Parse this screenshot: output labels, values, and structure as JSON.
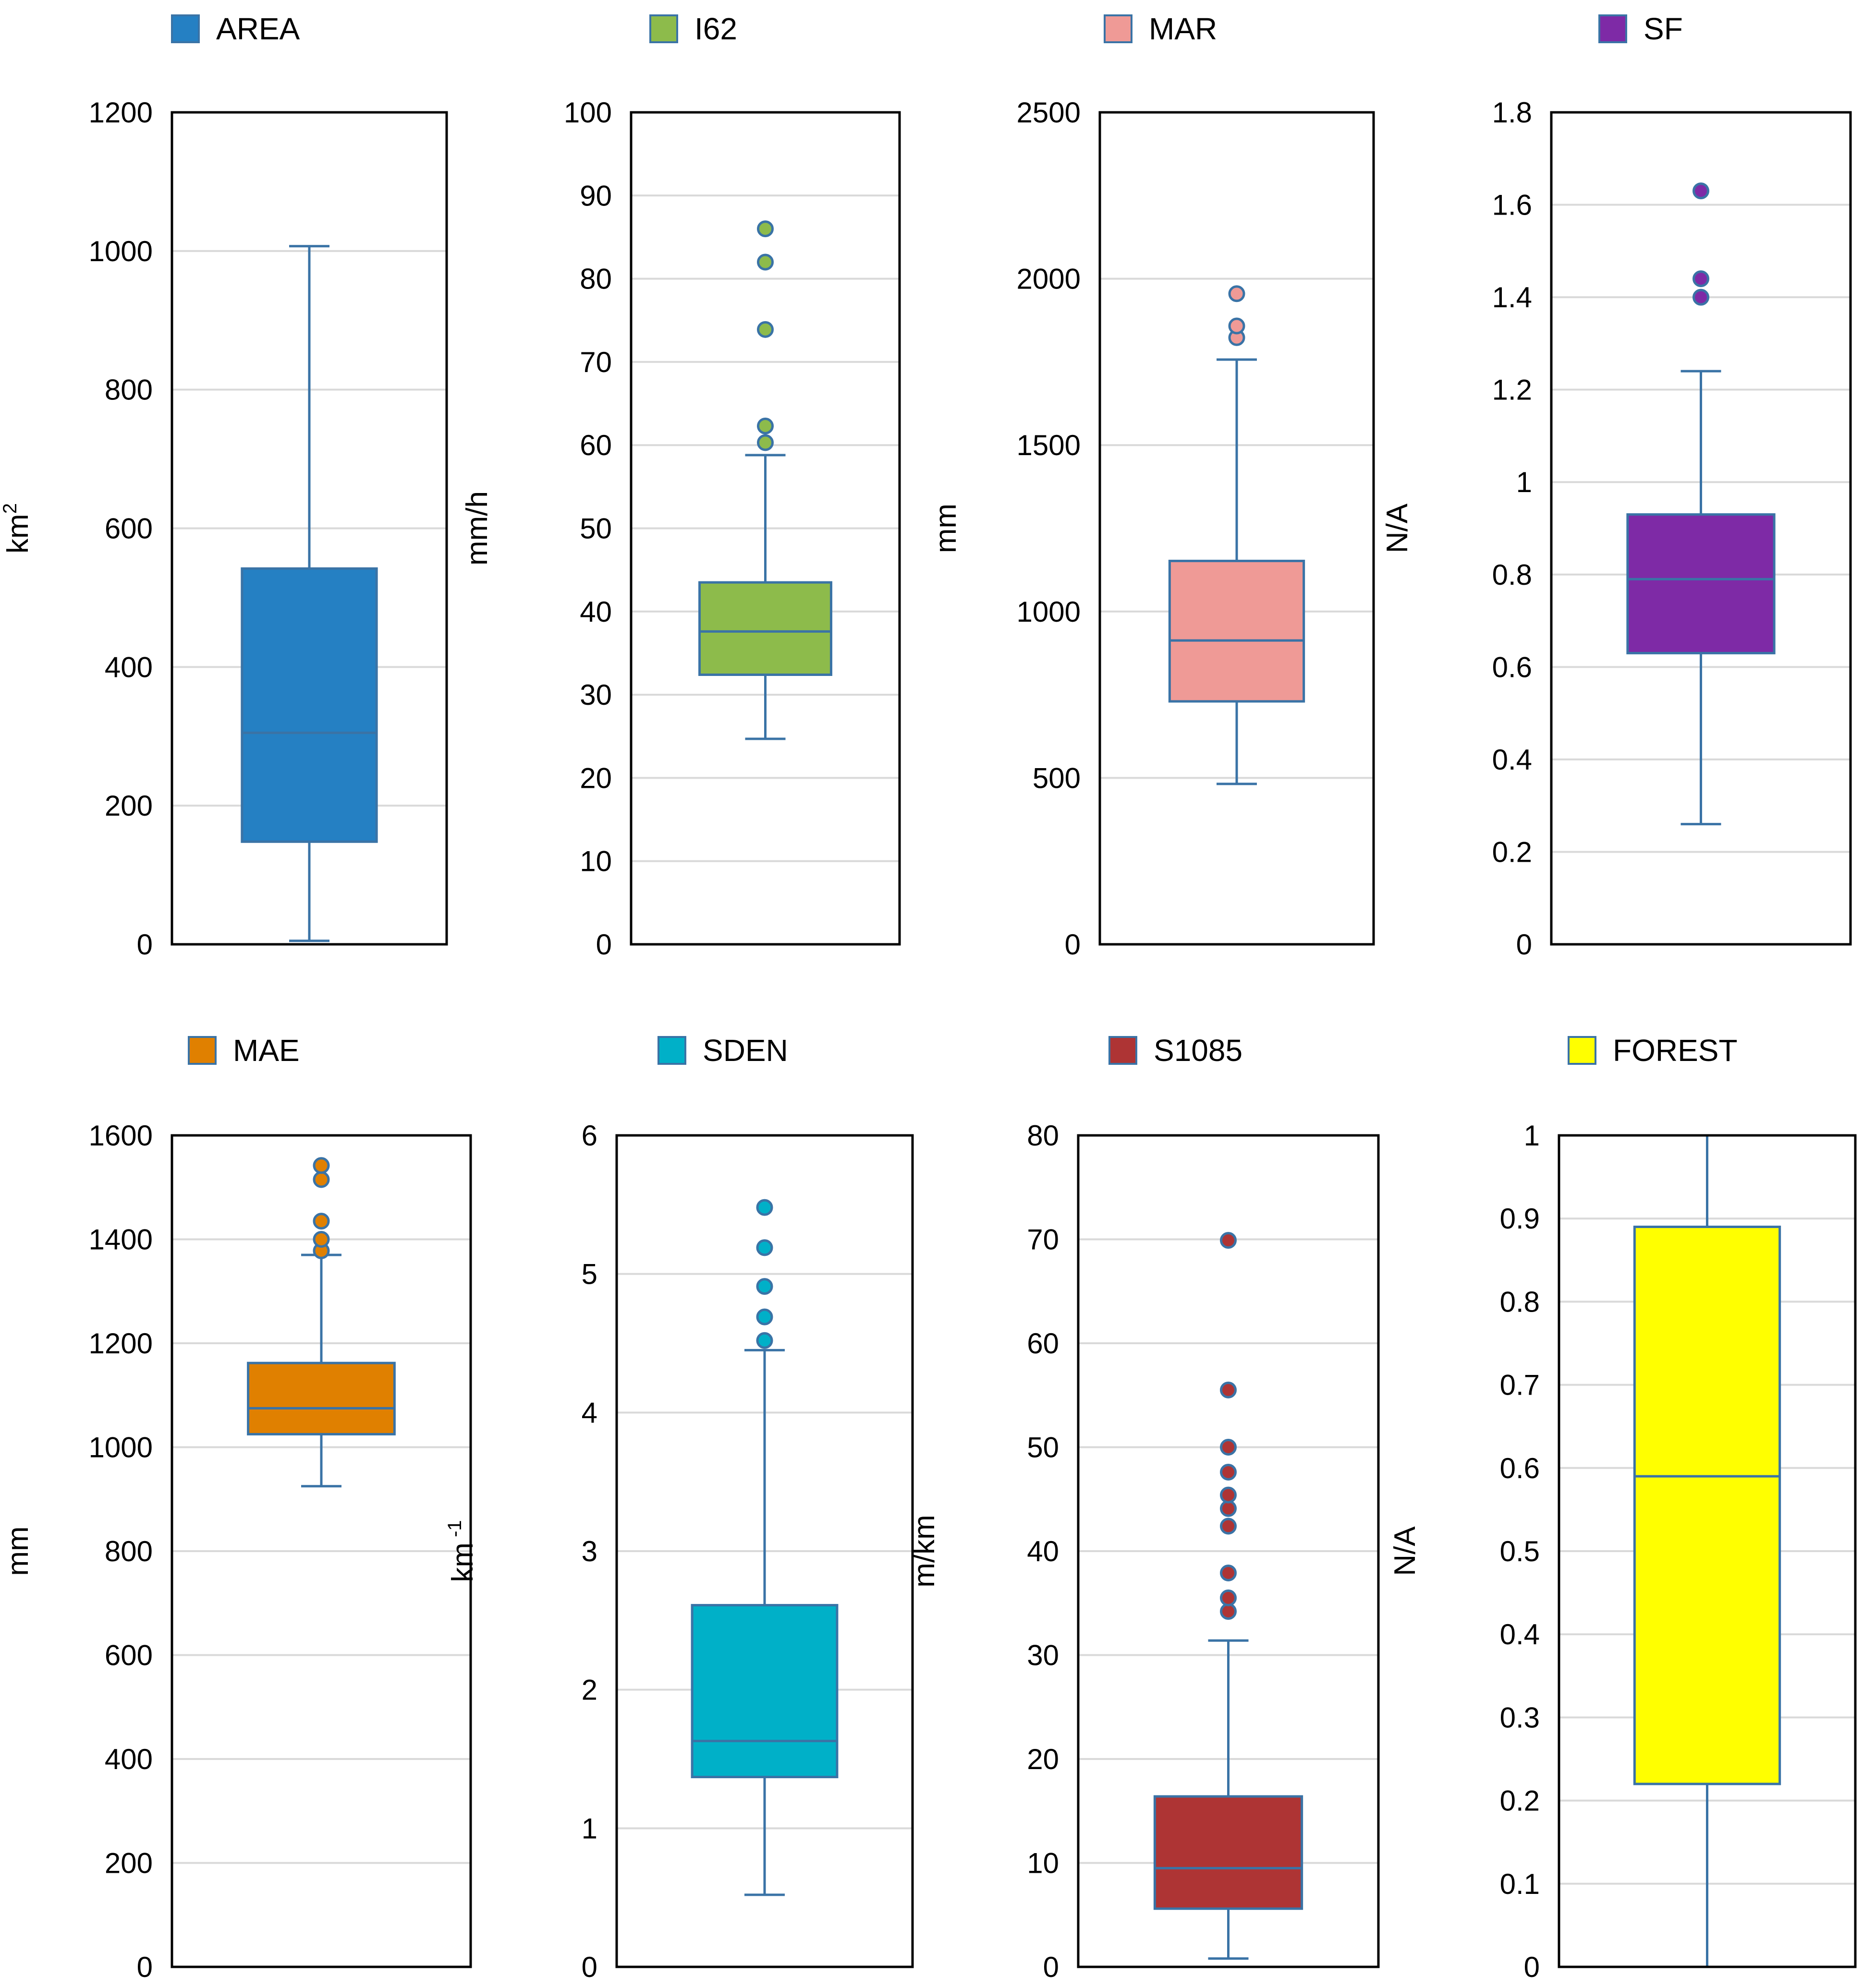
{
  "chart_data": [
    {
      "type": "boxplot",
      "legend": "AREA",
      "ylabel": "km",
      "ylabel_sup": "2",
      "ylim": [
        0,
        1200
      ],
      "yticks": [
        "0",
        "200",
        "400",
        "600",
        "800",
        "1000",
        "1200"
      ],
      "color": "#2580C3",
      "stats": {
        "min": 5,
        "q1": 148,
        "median": 305,
        "q3": 542,
        "max": 1007
      },
      "outliers": []
    },
    {
      "type": "boxplot",
      "legend": "I62",
      "ylabel": "mm/h",
      "ylabel_sup": "",
      "ylim": [
        0,
        100
      ],
      "yticks": [
        "0",
        "10",
        "20",
        "30",
        "40",
        "50",
        "60",
        "70",
        "80",
        "90",
        "100"
      ],
      "color": "#8DBB4B",
      "stats": {
        "min": 24.7,
        "q1": 32.4,
        "median": 37.6,
        "q3": 43.5,
        "max": 58.8
      },
      "outliers": [
        60.3,
        62.3,
        73.9,
        82.0,
        86.0
      ]
    },
    {
      "type": "boxplot",
      "legend": "MAR",
      "ylabel": "mm",
      "ylabel_sup": "",
      "ylim": [
        0,
        2500
      ],
      "yticks": [
        "0",
        "500",
        "1000",
        "1500",
        "2000",
        "2500"
      ],
      "color": "#EF9A96",
      "stats": {
        "min": 482,
        "q1": 730,
        "median": 913,
        "q3": 1152,
        "max": 1757
      },
      "outliers": [
        1823,
        1858,
        1955
      ]
    },
    {
      "type": "boxplot",
      "legend": "SF",
      "ylabel": "N/A",
      "ylabel_sup": "",
      "ylim": [
        0,
        1.8
      ],
      "yticks": [
        "0",
        "0.2",
        "0.4",
        "0.6",
        "0.8",
        "1",
        "1.2",
        "1.4",
        "1.6",
        "1.8"
      ],
      "color": "#7E2AA6",
      "stats": {
        "min": 0.26,
        "q1": 0.63,
        "median": 0.79,
        "q3": 0.93,
        "max": 1.24
      },
      "outliers": [
        1.4,
        1.44,
        1.63
      ]
    },
    {
      "type": "boxplot",
      "legend": "MAE",
      "ylabel": "mm",
      "ylabel_sup": "",
      "ylim": [
        0,
        1600
      ],
      "yticks": [
        "0",
        "200",
        "400",
        "600",
        "800",
        "1000",
        "1200",
        "1400",
        "1600"
      ],
      "color": "#E08000",
      "stats": {
        "min": 925,
        "q1": 1025,
        "median": 1075,
        "q3": 1162,
        "max": 1370
      },
      "outliers": [
        1378,
        1400,
        1435,
        1515,
        1542
      ]
    },
    {
      "type": "boxplot",
      "legend": "SDEN",
      "ylabel": "km",
      "ylabel_sup": "-1",
      "ylim": [
        0,
        6
      ],
      "yticks": [
        "0",
        "1",
        "2",
        "3",
        "4",
        "5",
        "6"
      ],
      "color": "#00B0C8",
      "stats": {
        "min": 0.52,
        "q1": 1.37,
        "median": 1.63,
        "q3": 2.61,
        "max": 4.45
      },
      "outliers": [
        4.52,
        4.69,
        4.91,
        5.19,
        5.48
      ]
    },
    {
      "type": "boxplot",
      "legend": "S1085",
      "ylabel": "m/km",
      "ylabel_sup": "",
      "ylim": [
        0,
        80
      ],
      "yticks": [
        "0",
        "10",
        "20",
        "30",
        "40",
        "50",
        "60",
        "70",
        "80"
      ],
      "color": "#AE3434",
      "stats": {
        "min": 0.8,
        "q1": 5.6,
        "median": 9.5,
        "q3": 16.4,
        "max": 31.4
      },
      "outliers": [
        34.2,
        35.5,
        37.9,
        42.4,
        44.1,
        45.4,
        47.6,
        50.0,
        55.5,
        69.9
      ]
    },
    {
      "type": "boxplot",
      "legend": "FOREST",
      "ylabel": "N/A",
      "ylabel_sup": "",
      "ylim": [
        0,
        1
      ],
      "yticks": [
        "0",
        "0.1",
        "0.2",
        "0.3",
        "0.4",
        "0.5",
        "0.6",
        "0.7",
        "0.8",
        "0.9",
        "1"
      ],
      "color": "#FFFF00",
      "stats": {
        "min": 0.0,
        "q1": 0.22,
        "median": 0.59,
        "q3": 0.89,
        "max": 1.0
      },
      "outliers": []
    }
  ]
}
